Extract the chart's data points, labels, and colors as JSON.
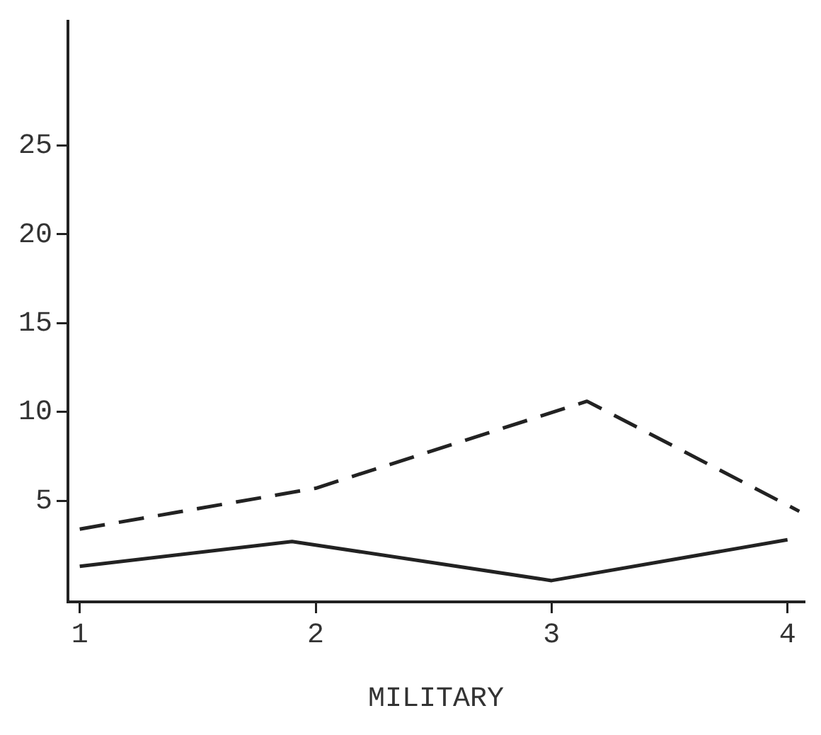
{
  "chart_data": {
    "type": "line",
    "xlabel": "MILITARY",
    "xlim": [
      0.95,
      4.07
    ],
    "xticks": [
      1,
      2,
      3,
      4
    ],
    "ylim": [
      -0.7,
      32
    ],
    "yticks": [
      5,
      10,
      15,
      20,
      25
    ],
    "grid": false,
    "legend": false,
    "marker": "none",
    "series": [
      {
        "color": "#222222",
        "line_style": "dashed",
        "x": [
          1,
          2,
          3.15,
          4.05
        ],
        "values": [
          3.4,
          5.7,
          10.6,
          4.4
        ]
      },
      {
        "color": "#222222",
        "line_style": "solid",
        "x": [
          1,
          1.9,
          3,
          4
        ],
        "values": [
          1.3,
          2.7,
          0.5,
          2.8
        ]
      }
    ]
  }
}
